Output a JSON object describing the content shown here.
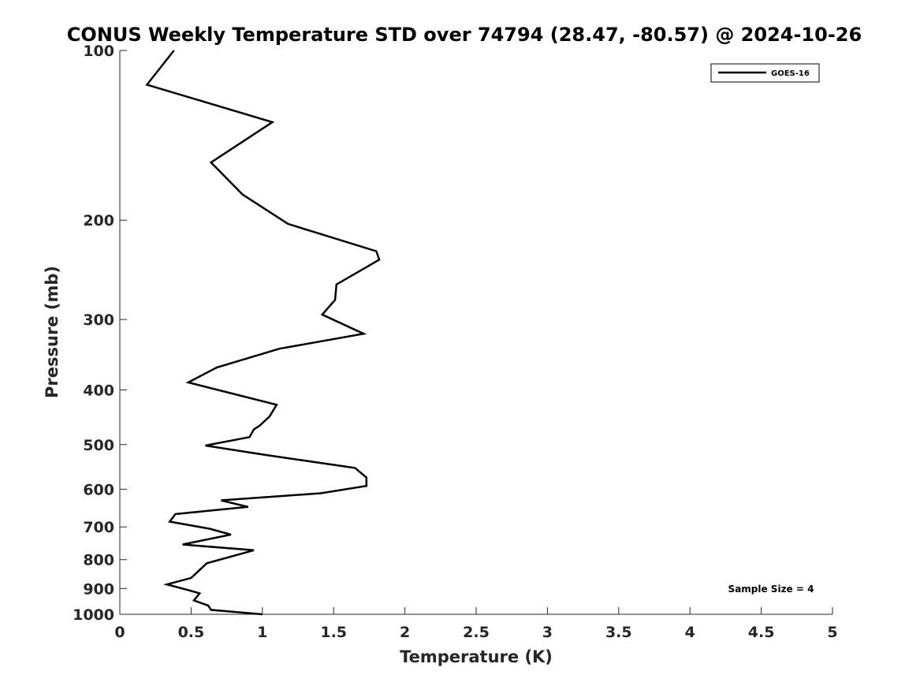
{
  "chart_data": {
    "type": "line",
    "title": "CONUS Weekly Temperature STD over 74794 (28.47, -80.57) @ 2024-10-26",
    "xlabel": "Temperature (K)",
    "ylabel": "Pressure (mb)",
    "xlim": [
      0,
      5
    ],
    "ylim": [
      100,
      1000
    ],
    "y_scale": "log",
    "y_reversed": true,
    "grid": false,
    "legend_position": "top-right",
    "x_ticks": [
      "0",
      "0.5",
      "1",
      "1.5",
      "2",
      "2.5",
      "3",
      "3.5",
      "4",
      "4.5",
      "5"
    ],
    "y_ticks": [
      "100",
      "200",
      "300",
      "400",
      "500",
      "600",
      "700",
      "800",
      "900",
      "1000"
    ],
    "annotation": "Sample Size = 4",
    "series": [
      {
        "name": "GOES-16",
        "color": "#000000",
        "x": [
          0.38,
          0.19,
          1.07,
          0.64,
          0.86,
          1.18,
          1.8,
          1.82,
          1.52,
          1.51,
          1.42,
          1.71,
          1.12,
          0.68,
          0.48,
          1.1,
          1.05,
          0.98,
          0.94,
          0.91,
          0.6,
          1.03,
          1.65,
          1.73,
          1.73,
          1.41,
          0.71,
          0.9,
          0.39,
          0.35,
          0.63,
          0.78,
          0.44,
          0.94,
          0.61,
          0.5,
          0.33,
          0.48,
          0.56,
          0.52,
          0.62,
          0.64,
          1.0
        ],
        "y": [
          100,
          115,
          134,
          158,
          180,
          203,
          227,
          235,
          260,
          277,
          294,
          318,
          338,
          365,
          388,
          425,
          446,
          463,
          470,
          485,
          502,
          522,
          550,
          572,
          592,
          610,
          628,
          645,
          664,
          685,
          705,
          722,
          752,
          770,
          812,
          862,
          885,
          906,
          918,
          945,
          965,
          982,
          1000
        ]
      }
    ]
  }
}
